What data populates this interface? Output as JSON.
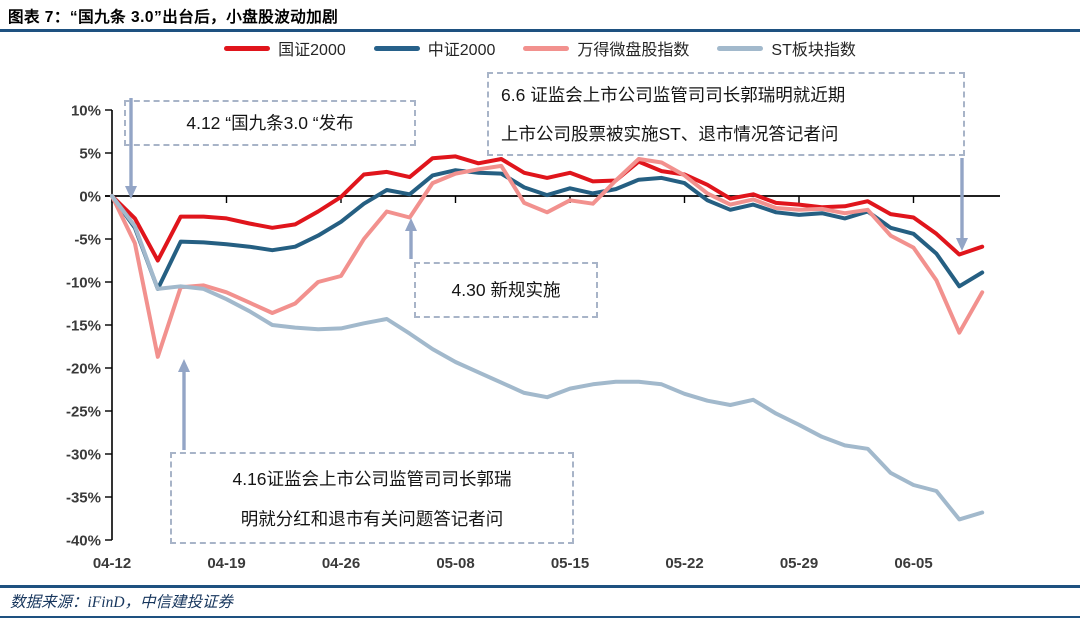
{
  "header": {
    "title": "图表 7：“国九条 3.0”出台后，小盘股波动加剧"
  },
  "legend": {
    "items": [
      {
        "label": "国证2000",
        "color": "#e0151c"
      },
      {
        "label": "中证2000",
        "color": "#27618a"
      },
      {
        "label": "万得微盘股指数",
        "color": "#f2918e"
      },
      {
        "label": "ST板块指数",
        "color": "#a2b9cc"
      }
    ]
  },
  "chart_data": {
    "type": "line",
    "title": "“国九条 3.0”出台后，小盘股波动加剧",
    "xlabel": "",
    "ylabel": "",
    "grid": false,
    "legend_position": "top-center",
    "ylim": [
      -40,
      10
    ],
    "yticks": {
      "values": [
        10,
        5,
        0,
        -5,
        -10,
        -15,
        -20,
        -25,
        -30,
        -35,
        -40
      ],
      "labels": [
        "10%",
        "5%",
        "0%",
        "-5%",
        "-10%",
        "-15%",
        "-20%",
        "-25%",
        "-30%",
        "-35%",
        "-40%"
      ]
    },
    "x_dates": [
      "04-12",
      "04-15",
      "04-16",
      "04-17",
      "04-18",
      "04-19",
      "04-22",
      "04-23",
      "04-24",
      "04-25",
      "04-26",
      "04-29",
      "04-30",
      "05-06",
      "05-07",
      "05-08",
      "05-09",
      "05-10",
      "05-13",
      "05-14",
      "05-15",
      "05-16",
      "05-17",
      "05-20",
      "05-21",
      "05-22",
      "05-23",
      "05-24",
      "05-27",
      "05-28",
      "05-29",
      "05-30",
      "05-31",
      "06-03",
      "06-04",
      "06-05",
      "06-06",
      "06-07",
      "06-11"
    ],
    "xticks": {
      "indices": [
        0,
        5,
        10,
        15,
        20,
        25,
        30,
        35
      ],
      "labels": [
        "04-12",
        "04-19",
        "04-26",
        "05-08",
        "05-15",
        "05-22",
        "05-29",
        "06-05"
      ]
    },
    "series": [
      {
        "name": "国证2000",
        "color": "#e0151c",
        "width": 4,
        "values": [
          0.0,
          -2.6,
          -7.5,
          -2.4,
          -2.4,
          -2.6,
          -3.2,
          -3.7,
          -3.3,
          -1.8,
          -0.1,
          2.5,
          2.8,
          2.2,
          4.4,
          4.6,
          3.8,
          4.3,
          2.7,
          2.1,
          2.7,
          1.7,
          1.8,
          4.0,
          2.9,
          2.5,
          1.3,
          -0.3,
          0.2,
          -0.8,
          -1.0,
          -1.3,
          -1.2,
          -0.6,
          -2.1,
          -2.5,
          -4.4,
          -6.8,
          -5.9
        ]
      },
      {
        "name": "中证2000",
        "color": "#255f82",
        "width": 4,
        "values": [
          0.0,
          -3.7,
          -10.8,
          -5.3,
          -5.4,
          -5.6,
          -5.9,
          -6.3,
          -5.9,
          -4.6,
          -3.0,
          -0.9,
          0.7,
          0.2,
          2.4,
          3.0,
          2.7,
          2.6,
          1.0,
          0.1,
          0.9,
          0.3,
          0.8,
          1.9,
          2.1,
          1.5,
          -0.5,
          -1.6,
          -1.0,
          -1.9,
          -2.2,
          -2.0,
          -2.6,
          -1.8,
          -3.7,
          -4.4,
          -6.7,
          -10.5,
          -8.9
        ]
      },
      {
        "name": "万得微盘股指数",
        "color": "#f2918e",
        "width": 4,
        "values": [
          0.0,
          -5.5,
          -18.7,
          -10.6,
          -10.4,
          -11.2,
          -12.4,
          -13.6,
          -12.5,
          -10.0,
          -9.3,
          -5.0,
          -1.8,
          -2.5,
          1.5,
          2.6,
          3.1,
          3.5,
          -0.8,
          -1.9,
          -0.5,
          -0.9,
          1.8,
          4.3,
          3.9,
          2.4,
          0.3,
          -1.0,
          -0.4,
          -1.4,
          -1.6,
          -1.5,
          -2.0,
          -1.6,
          -4.6,
          -6.0,
          -9.8,
          -15.9,
          -11.2
        ]
      },
      {
        "name": "ST板块指数",
        "color": "#a2b9cc",
        "width": 4,
        "values": [
          0.0,
          -3.5,
          -10.8,
          -10.5,
          -10.8,
          -12.0,
          -13.4,
          -15.0,
          -15.3,
          -15.5,
          -15.4,
          -14.8,
          -14.3,
          -16.0,
          -17.8,
          -19.3,
          -20.5,
          -21.7,
          -22.9,
          -23.4,
          -22.4,
          -21.9,
          -21.6,
          -21.6,
          -21.9,
          -23.0,
          -23.8,
          -24.3,
          -23.7,
          -25.3,
          -26.6,
          -28.0,
          -29.0,
          -29.4,
          -32.2,
          -33.6,
          -34.3,
          -37.6,
          -36.8
        ]
      }
    ]
  },
  "annotations": {
    "a412": {
      "text": "4.12 “国九条3.0 “发布"
    },
    "a66": {
      "line1": "6.6 证监会上市公司监管司司长郭瑞明就近期",
      "line2": "上市公司股票被实施ST、退市情况答记者问"
    },
    "a430": {
      "text": "4.30 新规实施"
    },
    "a416": {
      "line1": "4.16证监会上市公司监管司司长郭瑞",
      "line2": "明就分红和退市有关问题答记者问"
    }
  },
  "footer": {
    "source": "数据来源：iFinD，中信建投证券"
  }
}
